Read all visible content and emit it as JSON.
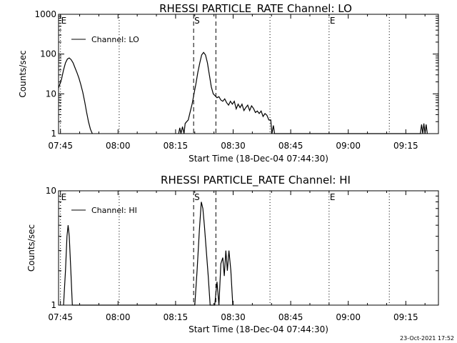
{
  "chart_data": [
    {
      "type": "line",
      "title": "RHESSI PARTICLE_RATE Channel: LO",
      "xlabel": "Start Time (18-Dec-04 07:44:30)",
      "ylabel": "Counts/sec",
      "x_unit": "minutes since 07:44:30",
      "xlim": [
        0,
        99
      ],
      "ylim": [
        1,
        1000
      ],
      "yscale": "log",
      "grid": false,
      "legend": "top-left",
      "xticks": [
        {
          "label": "07:45",
          "at": 0.5
        },
        {
          "label": "08:00",
          "at": 15.5
        },
        {
          "label": "08:15",
          "at": 30.5
        },
        {
          "label": "08:30",
          "at": 45.5
        },
        {
          "label": "08:45",
          "at": 60.5
        },
        {
          "label": "09:00",
          "at": 75.5
        },
        {
          "label": "09:15",
          "at": 90.5
        }
      ],
      "yticks": [
        {
          "label": "1000",
          "at": 1000
        },
        {
          "label": "100",
          "at": 100
        },
        {
          "label": "10",
          "at": 10
        },
        {
          "label": "1",
          "at": 1
        }
      ],
      "markers": [
        {
          "label": "E",
          "at": 0.5,
          "style": "dotted"
        },
        {
          "label": "",
          "at": 15.8,
          "style": "dotted"
        },
        {
          "label": "S",
          "at": 35.2,
          "style": "dashed"
        },
        {
          "label": "",
          "at": 41.0,
          "style": "dashed"
        },
        {
          "label": "",
          "at": 55.1,
          "style": "dotted"
        },
        {
          "label": "E",
          "at": 70.5,
          "style": "dotted"
        },
        {
          "label": "",
          "at": 86.2,
          "style": "dotted"
        }
      ],
      "series": [
        {
          "name": "Channel: LO",
          "x": [
            0.0,
            0.4,
            0.8,
            1.3,
            1.8,
            2.3,
            2.8,
            3.3,
            3.8,
            4.3,
            4.8,
            5.3,
            5.8,
            6.3,
            6.8,
            7.3,
            7.8,
            8.3,
            8.8,
            9.3,
            9.8,
            31.3,
            31.6,
            31.9,
            32.3,
            32.7,
            33.0,
            33.4,
            33.8,
            34.3,
            34.8,
            35.3,
            35.8,
            36.3,
            36.8,
            37.3,
            37.8,
            38.3,
            38.8,
            39.3,
            39.8,
            40.3,
            40.8,
            41.3,
            41.8,
            42.3,
            42.8,
            43.3,
            43.8,
            44.3,
            44.8,
            45.3,
            45.8,
            46.3,
            46.8,
            47.3,
            47.8,
            48.3,
            48.8,
            49.3,
            49.8,
            50.3,
            50.8,
            51.3,
            51.8,
            52.3,
            52.8,
            53.3,
            53.8,
            54.3,
            54.8,
            55.3,
            55.6,
            56.0,
            56.3,
            94.3,
            94.6,
            94.9,
            95.2,
            95.5,
            95.8,
            96.1
          ],
          "y": [
            14,
            18,
            24,
            40,
            60,
            75,
            80,
            72,
            60,
            45,
            34,
            25,
            17,
            11,
            6.5,
            3.5,
            2.0,
            1.3,
            1.0,
            null,
            null,
            1.0,
            1.4,
            1.0,
            1.5,
            1.0,
            1.8,
            2.0,
            2.2,
            3.5,
            5.5,
            10,
            18,
            35,
            60,
            95,
            110,
            95,
            60,
            30,
            15,
            10,
            9,
            8,
            8.5,
            7,
            6.5,
            7.5,
            6,
            5.2,
            6.5,
            5.5,
            6.5,
            4.2,
            5.5,
            4.5,
            5.5,
            3.8,
            4.5,
            5.2,
            3.8,
            5.0,
            4.3,
            3.4,
            3.7,
            3.2,
            3.7,
            2.7,
            3.2,
            2.9,
            2.2,
            2.2,
            1.0,
            1.6,
            1.0,
            1.0,
            1.7,
            1.0,
            1.8,
            1.0,
            1.7,
            1.0
          ]
        }
      ]
    },
    {
      "type": "line",
      "title": "RHESSI PARTICLE_RATE Channel: HI",
      "xlabel": "Start Time (18-Dec-04 07:44:30)",
      "ylabel": "Counts/sec",
      "x_unit": "minutes since 07:44:30",
      "xlim": [
        0,
        99
      ],
      "ylim": [
        1,
        10
      ],
      "yscale": "log",
      "grid": false,
      "legend": "top-left",
      "xticks": [
        {
          "label": "07:45",
          "at": 0.5
        },
        {
          "label": "08:00",
          "at": 15.5
        },
        {
          "label": "08:15",
          "at": 30.5
        },
        {
          "label": "08:30",
          "at": 45.5
        },
        {
          "label": "08:45",
          "at": 60.5
        },
        {
          "label": "09:00",
          "at": 75.5
        },
        {
          "label": "09:15",
          "at": 90.5
        }
      ],
      "yticks": [
        {
          "label": "10",
          "at": 10
        },
        {
          "label": "1",
          "at": 1
        }
      ],
      "markers": [
        {
          "label": "E",
          "at": 0.5,
          "style": "dotted"
        },
        {
          "label": "",
          "at": 15.8,
          "style": "dotted"
        },
        {
          "label": "S",
          "at": 35.2,
          "style": "dashed"
        },
        {
          "label": "",
          "at": 41.0,
          "style": "dashed"
        },
        {
          "label": "",
          "at": 55.1,
          "style": "dotted"
        },
        {
          "label": "E",
          "at": 70.5,
          "style": "dotted"
        },
        {
          "label": "",
          "at": 86.2,
          "style": "dotted"
        }
      ],
      "series": [
        {
          "name": "Channel: HI",
          "x": [
            1.3,
            1.8,
            2.2,
            2.5,
            2.8,
            3.2,
            3.6,
            35.5,
            36.1,
            36.7,
            37.2,
            37.6,
            38.0,
            38.5,
            39.0,
            39.5,
            40.0,
            40.7,
            41.3,
            41.8,
            42.3,
            42.8,
            43.2,
            43.6,
            44.0,
            44.4,
            44.9,
            45.4
          ],
          "y": [
            1.0,
            2.0,
            4.0,
            5.0,
            4.0,
            2.0,
            1.0,
            1.0,
            2.0,
            4.5,
            8.0,
            7.0,
            5.0,
            3.0,
            1.8,
            1.0,
            1.0,
            1.0,
            1.6,
            1.0,
            2.3,
            2.6,
            1.8,
            3.0,
            2.0,
            3.0,
            2.0,
            1.0
          ]
        }
      ]
    }
  ],
  "footer": {
    "timestamp": "23-Oct-2021 17:52"
  },
  "colors": {
    "line": "#000000",
    "background": "#ffffff"
  }
}
